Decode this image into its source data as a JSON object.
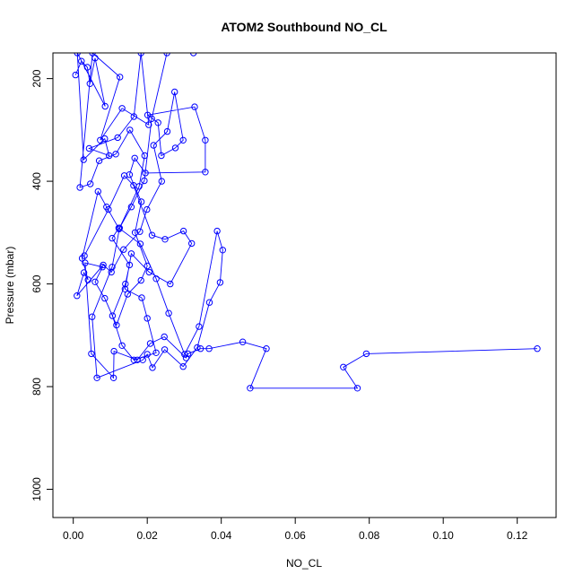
{
  "chart_data": {
    "type": "line",
    "title": "ATOM2 Southbound NO_CL",
    "xlabel": "NO_CL",
    "ylabel": "Pressure (mbar)",
    "xlim": [
      -0.0055,
      0.1305
    ],
    "ylim": [
      1055,
      150
    ],
    "y_reversed": true,
    "xticks": [
      0.0,
      0.02,
      0.04,
      0.06,
      0.08,
      0.1,
      0.12
    ],
    "xtick_labels": [
      "0.00",
      "0.02",
      "0.04",
      "0.06",
      "0.08",
      "0.10",
      "0.12"
    ],
    "yticks": [
      200,
      400,
      600,
      800,
      1000
    ],
    "ytick_labels": [
      "200",
      "400",
      "600",
      "800",
      "1000"
    ],
    "grid": false,
    "legend": "none",
    "color": "#0000ff",
    "marker": "open-circle",
    "series": [
      {
        "values": [
          [
            0.0006,
            193
          ],
          [
            0.0022,
            166
          ],
          [
            0.0038,
            178
          ],
          [
            0.0045,
            210
          ],
          [
            0.0059,
            160
          ],
          [
            0.0086,
            254
          ],
          [
            0.0011,
            150
          ],
          [
            0.0028,
            358
          ],
          [
            0.0085,
            317
          ],
          [
            0.0097,
            350
          ],
          [
            0.0043,
            336
          ],
          [
            0.012,
            315
          ],
          [
            0.0164,
            274
          ],
          [
            0.0183,
            150
          ],
          [
            0.0204,
            290
          ],
          [
            0.0132,
            258
          ],
          [
            0.0073,
            320
          ],
          [
            0.0126,
            197
          ],
          [
            0.0052,
            150
          ],
          [
            0.0018,
            412
          ],
          [
            0.0046,
            405
          ],
          [
            0.007,
            360
          ],
          [
            0.0115,
            347
          ],
          [
            0.0153,
            300
          ],
          [
            0.0193,
            350
          ],
          [
            0.0178,
            410
          ],
          [
            0.0124,
            493
          ],
          [
            0.009,
            450
          ],
          [
            0.0067,
            420
          ],
          [
            0.0024,
            550
          ],
          [
            0.004,
            592
          ],
          [
            0.0029,
            578
          ],
          [
            0.001,
            623
          ],
          [
            0.0081,
            563
          ],
          [
            0.0103,
            577
          ],
          [
            0.0136,
            533
          ],
          [
            0.018,
            498
          ],
          [
            0.0199,
            455
          ],
          [
            0.0239,
            400
          ],
          [
            0.0217,
            330
          ],
          [
            0.0254,
            303
          ],
          [
            0.0274,
            226
          ],
          [
            0.0297,
            320
          ],
          [
            0.0276,
            335
          ],
          [
            0.0238,
            350
          ],
          [
            0.0229,
            286
          ],
          [
            0.0201,
            271
          ],
          [
            0.0328,
            255
          ],
          [
            0.0357,
            320
          ],
          [
            0.0357,
            382
          ],
          [
            0.0195,
            384
          ],
          [
            0.0166,
            355
          ],
          [
            0.0152,
            387
          ],
          [
            0.0184,
            440
          ],
          [
            0.0167,
            500
          ],
          [
            0.02,
            565
          ],
          [
            0.0183,
            593
          ],
          [
            0.0147,
            620
          ],
          [
            0.0117,
            680
          ],
          [
            0.0085,
            628
          ],
          [
            0.0059,
            596
          ],
          [
            0.0079,
            567
          ],
          [
            0.0032,
            559
          ],
          [
            0.0049,
            736
          ],
          [
            0.0109,
            783
          ],
          [
            0.011,
            731
          ],
          [
            0.0173,
            748
          ],
          [
            0.0208,
            716
          ],
          [
            0.0246,
            703
          ],
          [
            0.0305,
            744
          ],
          [
            0.031,
            736
          ],
          [
            0.0344,
            726
          ],
          [
            0.0367,
            726
          ],
          [
            0.0458,
            713
          ],
          [
            0.0522,
            726
          ],
          [
            0.0478,
            803
          ],
          [
            0.0768,
            803
          ],
          [
            0.073,
            762
          ],
          [
            0.0792,
            736
          ],
          [
            0.1254,
            726
          ]
        ]
      },
      {
        "values": [
          [
            0.003,
            545
          ],
          [
            0.0095,
            455
          ],
          [
            0.0138,
            389
          ],
          [
            0.0163,
            408
          ],
          [
            0.0213,
            505
          ],
          [
            0.0248,
            513
          ],
          [
            0.0298,
            497
          ],
          [
            0.032,
            521
          ],
          [
            0.0262,
            600
          ],
          [
            0.0205,
            577
          ],
          [
            0.0157,
            541
          ],
          [
            0.014,
            610
          ],
          [
            0.0185,
            627
          ],
          [
            0.02,
            667
          ],
          [
            0.0224,
            734
          ],
          [
            0.0164,
            748
          ],
          [
            0.0132,
            720
          ],
          [
            0.0106,
            662
          ],
          [
            0.0141,
            600
          ],
          [
            0.0152,
            563
          ],
          [
            0.0105,
            511
          ],
          [
            0.0123,
            491
          ],
          [
            0.0181,
            522
          ],
          [
            0.0224,
            590
          ],
          [
            0.0258,
            657
          ],
          [
            0.0301,
            737
          ],
          [
            0.034,
            683
          ],
          [
            0.0389,
            497
          ],
          [
            0.0404,
            534
          ],
          [
            0.0397,
            597
          ],
          [
            0.0368,
            636
          ],
          [
            0.0335,
            724
          ],
          [
            0.0297,
            761
          ],
          [
            0.0247,
            728
          ],
          [
            0.0214,
            763
          ],
          [
            0.02,
            737
          ],
          [
            0.0188,
            748
          ],
          [
            0.0064,
            783
          ],
          [
            0.0051,
            664
          ],
          [
            0.0105,
            567
          ],
          [
            0.0125,
            491
          ],
          [
            0.0157,
            450
          ],
          [
            0.0192,
            399
          ],
          [
            0.0212,
            278
          ],
          [
            0.0253,
            150
          ],
          [
            0.0325,
            150
          ]
        ]
      }
    ]
  }
}
